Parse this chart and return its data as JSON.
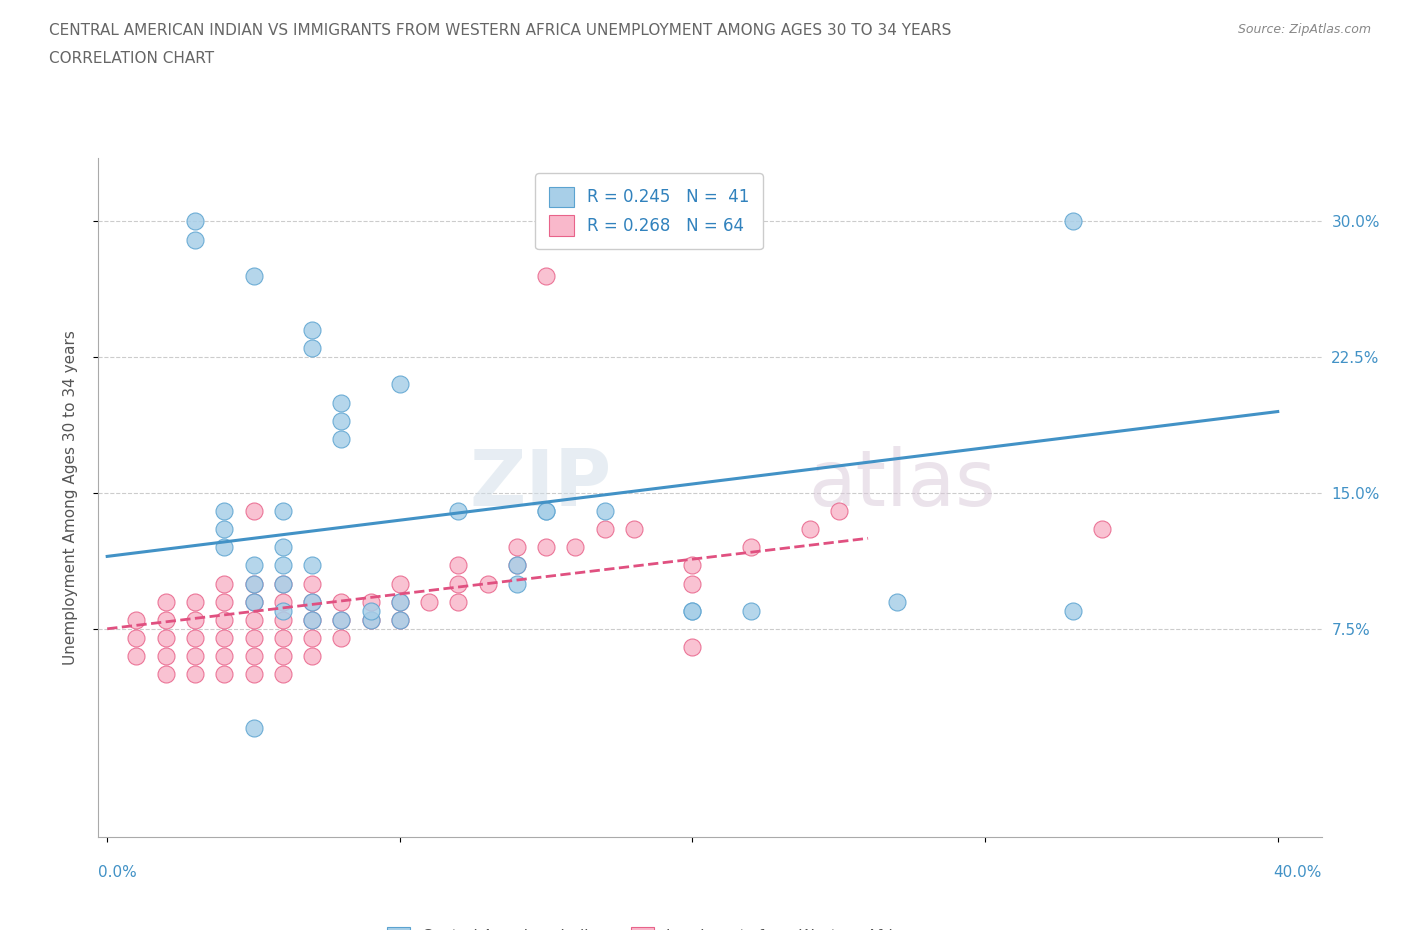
{
  "title_line1": "CENTRAL AMERICAN INDIAN VS IMMIGRANTS FROM WESTERN AFRICA UNEMPLOYMENT AMONG AGES 30 TO 34 YEARS",
  "title_line2": "CORRELATION CHART",
  "source_text": "Source: ZipAtlas.com",
  "ylabel": "Unemployment Among Ages 30 to 34 years",
  "xlim": [
    -0.003,
    0.415
  ],
  "ylim": [
    -0.04,
    0.335
  ],
  "xticks": [
    0.0,
    0.1,
    0.2,
    0.3,
    0.4
  ],
  "xticklabels_outer": [
    "0.0%",
    "40.0%"
  ],
  "yticks": [
    0.075,
    0.15,
    0.225,
    0.3
  ],
  "yticklabels": [
    "7.5%",
    "15.0%",
    "22.5%",
    "30.0%"
  ],
  "blue_color": "#a8cfe8",
  "blue_edge_color": "#5ba3d0",
  "pink_color": "#f9b8cb",
  "pink_edge_color": "#e8638a",
  "blue_line_color": "#4292c6",
  "pink_line_color": "#e05080",
  "legend_r1": "R = 0.245   N =  41",
  "legend_r2": "R = 0.268   N = 64",
  "legend_text_color": "#3182bd",
  "watermark_zip": "ZIP",
  "watermark_atlas": "atlas",
  "blue_scatter_x": [
    0.03,
    0.05,
    0.07,
    0.07,
    0.08,
    0.08,
    0.08,
    0.04,
    0.04,
    0.04,
    0.05,
    0.05,
    0.05,
    0.06,
    0.06,
    0.06,
    0.06,
    0.07,
    0.07,
    0.07,
    0.08,
    0.09,
    0.1,
    0.1,
    0.12,
    0.14,
    0.14,
    0.15,
    0.17,
    0.2,
    0.22,
    0.27,
    0.33,
    0.03,
    0.05,
    0.1,
    0.15,
    0.2,
    0.33,
    0.06,
    0.09
  ],
  "blue_scatter_y": [
    0.29,
    0.27,
    0.24,
    0.23,
    0.2,
    0.19,
    0.18,
    0.14,
    0.13,
    0.12,
    0.11,
    0.1,
    0.09,
    0.1,
    0.11,
    0.12,
    0.14,
    0.08,
    0.09,
    0.11,
    0.08,
    0.08,
    0.08,
    0.09,
    0.14,
    0.1,
    0.11,
    0.14,
    0.14,
    0.085,
    0.085,
    0.09,
    0.085,
    0.3,
    0.02,
    0.21,
    0.14,
    0.085,
    0.3,
    0.085,
    0.085
  ],
  "pink_scatter_x": [
    0.01,
    0.01,
    0.01,
    0.02,
    0.02,
    0.02,
    0.02,
    0.02,
    0.03,
    0.03,
    0.03,
    0.03,
    0.03,
    0.04,
    0.04,
    0.04,
    0.04,
    0.04,
    0.04,
    0.05,
    0.05,
    0.05,
    0.05,
    0.05,
    0.05,
    0.05,
    0.06,
    0.06,
    0.06,
    0.06,
    0.06,
    0.06,
    0.07,
    0.07,
    0.07,
    0.07,
    0.07,
    0.08,
    0.08,
    0.08,
    0.09,
    0.09,
    0.1,
    0.1,
    0.1,
    0.11,
    0.12,
    0.12,
    0.12,
    0.13,
    0.14,
    0.14,
    0.15,
    0.16,
    0.17,
    0.18,
    0.2,
    0.2,
    0.22,
    0.24,
    0.25,
    0.34,
    0.2,
    0.15
  ],
  "pink_scatter_y": [
    0.06,
    0.07,
    0.08,
    0.05,
    0.06,
    0.07,
    0.08,
    0.09,
    0.05,
    0.06,
    0.07,
    0.08,
    0.09,
    0.05,
    0.06,
    0.07,
    0.08,
    0.09,
    0.1,
    0.05,
    0.06,
    0.07,
    0.08,
    0.09,
    0.1,
    0.14,
    0.05,
    0.06,
    0.07,
    0.08,
    0.09,
    0.1,
    0.06,
    0.07,
    0.08,
    0.09,
    0.1,
    0.07,
    0.08,
    0.09,
    0.08,
    0.09,
    0.08,
    0.09,
    0.1,
    0.09,
    0.09,
    0.1,
    0.11,
    0.1,
    0.11,
    0.12,
    0.12,
    0.12,
    0.13,
    0.13,
    0.1,
    0.11,
    0.12,
    0.13,
    0.14,
    0.13,
    0.065,
    0.27
  ],
  "blue_trend_x": [
    0.0,
    0.4
  ],
  "blue_trend_y": [
    0.115,
    0.195
  ],
  "pink_trend_x": [
    0.0,
    0.26
  ],
  "pink_trend_y": [
    0.075,
    0.125
  ],
  "background_color": "#ffffff",
  "grid_color": "#cccccc",
  "tick_label_color": "#4292c6",
  "title_color": "#666666",
  "legend_bottom_labels": [
    "Central American Indians",
    "Immigrants from Western Africa"
  ]
}
